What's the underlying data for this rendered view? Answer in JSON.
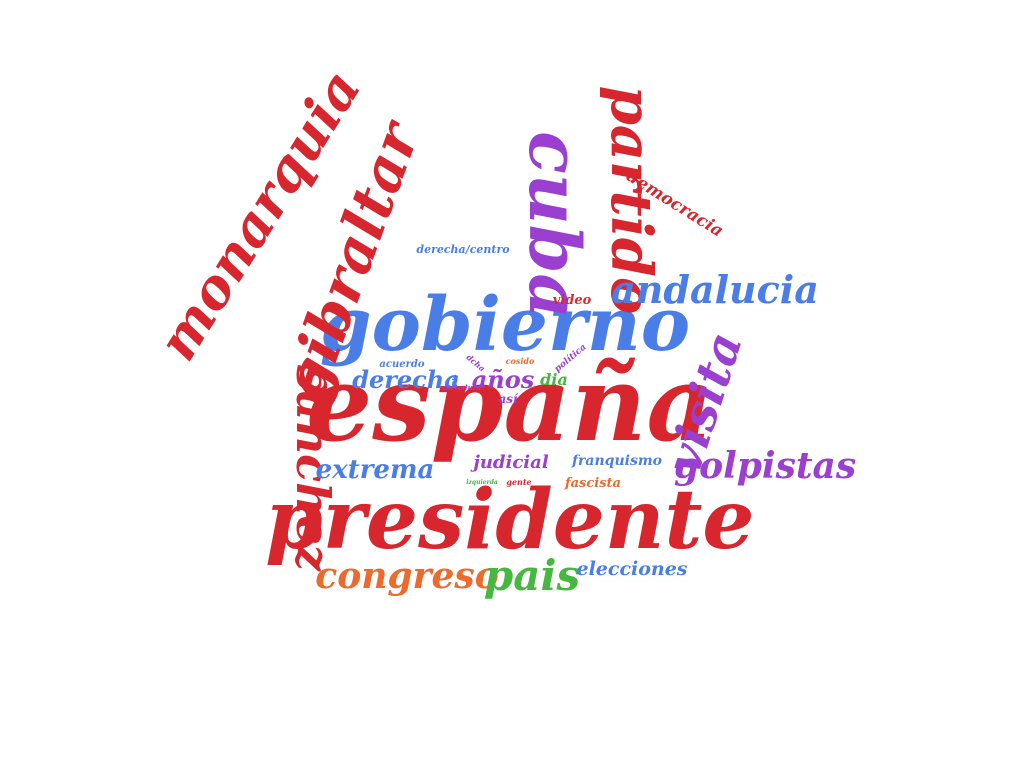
{
  "colors": {
    "red": "#d7262e",
    "blue": "#4a7ee6",
    "green": "#46b83f",
    "purple": "#9b3fd0",
    "orange": "#ec6a2c"
  },
  "words": [
    {
      "id": "espana",
      "text": "españa",
      "color": "red"
    },
    {
      "id": "presidente",
      "text": "presidente",
      "color": "red"
    },
    {
      "id": "gobierno",
      "text": "gobierno",
      "color": "blue"
    },
    {
      "id": "monarquia",
      "text": "monarquia",
      "color": "red"
    },
    {
      "id": "gibraltar",
      "text": "gibraltar",
      "color": "red"
    },
    {
      "id": "cuba",
      "text": "cuba",
      "color": "purple"
    },
    {
      "id": "partido",
      "text": "partido",
      "color": "red"
    },
    {
      "id": "sanchez",
      "text": "sanchez",
      "color": "red"
    },
    {
      "id": "visita",
      "text": "visita",
      "color": "purple"
    },
    {
      "id": "andalucia",
      "text": "andalucia",
      "color": "blue"
    },
    {
      "id": "golpistas",
      "text": "golpistas",
      "color": "purple"
    },
    {
      "id": "congreso",
      "text": "congreso",
      "color": "orange"
    },
    {
      "id": "pais",
      "text": "pais",
      "color": "green"
    },
    {
      "id": "extrema",
      "text": "extrema",
      "color": "blue"
    },
    {
      "id": "derecha",
      "text": "derecha",
      "color": "blue"
    },
    {
      "id": "anos",
      "text": "años",
      "color": "purple"
    },
    {
      "id": "elecciones",
      "text": "elecciones",
      "color": "blue"
    },
    {
      "id": "judicial",
      "text": "judicial",
      "color": "purple"
    },
    {
      "id": "democracia",
      "text": "democracia",
      "color": "red"
    },
    {
      "id": "franquismo",
      "text": "franquismo",
      "color": "blue"
    },
    {
      "id": "fascista",
      "text": "fascista",
      "color": "orange"
    },
    {
      "id": "dia",
      "text": "dia",
      "color": "green"
    },
    {
      "id": "video",
      "text": "video",
      "color": "red"
    },
    {
      "id": "derecha-centro",
      "text": "derecha/centro",
      "color": "blue"
    },
    {
      "id": "acuerdo",
      "text": "acuerdo",
      "color": "blue"
    },
    {
      "id": "asi",
      "text": "así",
      "color": "purple"
    },
    {
      "id": "politica",
      "text": "política",
      "color": "purple"
    },
    {
      "id": "gente",
      "text": "gente",
      "color": "red"
    },
    {
      "id": "dictadura",
      "text": "dictadura",
      "color": "purple"
    },
    {
      "id": "izquierda",
      "text": "izquierda",
      "color": "green"
    },
    {
      "id": "dcha",
      "text": "dcha",
      "color": "purple"
    },
    {
      "id": "cosido",
      "text": "cosido",
      "color": "orange"
    },
    {
      "id": "via",
      "text": "via",
      "color": "blue"
    }
  ]
}
